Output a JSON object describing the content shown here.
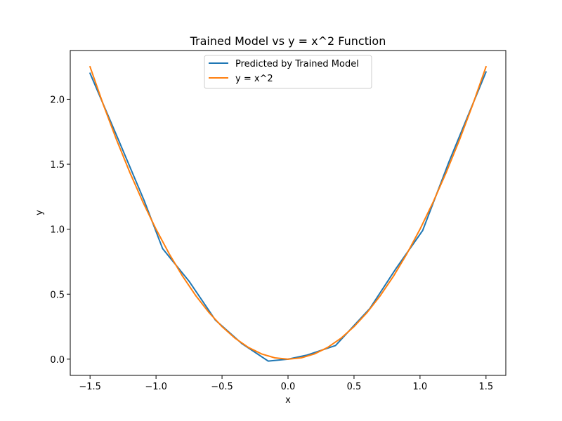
{
  "chart_data": {
    "type": "line",
    "title": "Trained Model vs y = x^2 Function",
    "xlabel": "x",
    "ylabel": "y",
    "xlim": [
      -1.65,
      1.65
    ],
    "ylim": [
      -0.125,
      2.375
    ],
    "x_ticks": [
      -1.5,
      -1.0,
      -0.5,
      0.0,
      0.5,
      1.0,
      1.5
    ],
    "x_tick_labels": [
      "−1.5",
      "−1.0",
      "−0.5",
      "0.0",
      "0.5",
      "1.0",
      "1.5"
    ],
    "y_ticks": [
      0.0,
      0.5,
      1.0,
      1.5,
      2.0
    ],
    "y_tick_labels": [
      "0.0",
      "0.5",
      "1.0",
      "1.5",
      "2.0"
    ],
    "grid": false,
    "legend_position": "upper center",
    "series": [
      {
        "name": "Predicted by Trained Model",
        "color": "#1f77b4",
        "x": [
          -1.5,
          -1.29,
          -1.09,
          -0.95,
          -0.75,
          -0.55,
          -0.35,
          -0.15,
          0.0,
          0.14,
          0.36,
          0.62,
          0.82,
          1.02,
          1.22,
          1.5
        ],
        "y": [
          2.2,
          1.7,
          1.22,
          0.85,
          0.6,
          0.3,
          0.12,
          -0.015,
          0.0,
          0.03,
          0.105,
          0.39,
          0.7,
          0.99,
          1.52,
          2.21
        ]
      },
      {
        "name": "y = x^2",
        "color": "#ff7f0e",
        "x": [
          -1.5,
          -1.4,
          -1.3,
          -1.2,
          -1.1,
          -1.0,
          -0.9,
          -0.8,
          -0.7,
          -0.6,
          -0.5,
          -0.4,
          -0.3,
          -0.2,
          -0.1,
          0.0,
          0.1,
          0.2,
          0.3,
          0.4,
          0.5,
          0.6,
          0.7,
          0.8,
          0.9,
          1.0,
          1.1,
          1.2,
          1.3,
          1.4,
          1.5
        ],
        "y": [
          2.25,
          1.96,
          1.69,
          1.44,
          1.21,
          1.0,
          0.81,
          0.64,
          0.49,
          0.36,
          0.25,
          0.16,
          0.09,
          0.04,
          0.01,
          0.0,
          0.01,
          0.04,
          0.09,
          0.16,
          0.25,
          0.36,
          0.49,
          0.64,
          0.81,
          1.0,
          1.21,
          1.44,
          1.69,
          1.96,
          2.25
        ]
      }
    ]
  }
}
